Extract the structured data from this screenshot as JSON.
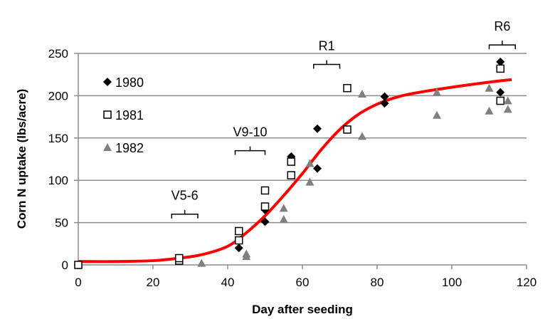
{
  "chart_data": {
    "type": "scatter",
    "title": "",
    "xlabel": "Day after seeding",
    "ylabel": "Corn N uptake (lbs/acre)",
    "xlim": [
      0,
      120
    ],
    "ylim": [
      0,
      250
    ],
    "xticks": [
      0,
      20,
      40,
      60,
      80,
      100,
      120
    ],
    "yticks": [
      0,
      50,
      100,
      150,
      200,
      250
    ],
    "grid": "horizontal",
    "legend_position": "top-left inside",
    "series": [
      {
        "name": "1980",
        "marker": "diamond",
        "color": "#000000",
        "points": [
          [
            0,
            0
          ],
          [
            43,
            20
          ],
          [
            50,
            65
          ],
          [
            50,
            51
          ],
          [
            57,
            128
          ],
          [
            64,
            161
          ],
          [
            64,
            114
          ],
          [
            82,
            199
          ],
          [
            82,
            191
          ],
          [
            113,
            240
          ],
          [
            113,
            204
          ]
        ]
      },
      {
        "name": "1981",
        "marker": "open-square",
        "color": "#000000",
        "points": [
          [
            0,
            0
          ],
          [
            27,
            5
          ],
          [
            27,
            8
          ],
          [
            43,
            40
          ],
          [
            43,
            29
          ],
          [
            50,
            88
          ],
          [
            50,
            69
          ],
          [
            57,
            106
          ],
          [
            57,
            122
          ],
          [
            72,
            209
          ],
          [
            72,
            160
          ],
          [
            113,
            232
          ],
          [
            113,
            194
          ]
        ]
      },
      {
        "name": "1982",
        "marker": "triangle",
        "color": "#808080",
        "points": [
          [
            33,
            2
          ],
          [
            45,
            13
          ],
          [
            45,
            10
          ],
          [
            55,
            67
          ],
          [
            55,
            54
          ],
          [
            62,
            120
          ],
          [
            62,
            98
          ],
          [
            76,
            202
          ],
          [
            76,
            152
          ],
          [
            96,
            204
          ],
          [
            96,
            177
          ],
          [
            110,
            209
          ],
          [
            110,
            182
          ],
          [
            115,
            194
          ],
          [
            115,
            184
          ]
        ]
      }
    ],
    "fit_curve": {
      "color": "#ff0000",
      "points": [
        [
          0,
          4
        ],
        [
          10,
          4
        ],
        [
          20,
          5
        ],
        [
          27,
          8
        ],
        [
          33,
          12
        ],
        [
          40,
          22
        ],
        [
          45,
          38
        ],
        [
          50,
          58
        ],
        [
          55,
          82
        ],
        [
          60,
          108
        ],
        [
          65,
          136
        ],
        [
          70,
          160
        ],
        [
          75,
          178
        ],
        [
          80,
          190
        ],
        [
          85,
          198
        ],
        [
          90,
          203
        ],
        [
          100,
          210
        ],
        [
          110,
          216
        ],
        [
          116,
          219
        ]
      ]
    },
    "annotations": [
      {
        "label": "V5-6",
        "x_range": [
          25,
          32
        ],
        "y": 60
      },
      {
        "label": "V9-10",
        "x_range": [
          42,
          50
        ],
        "y": 135
      },
      {
        "label": "R1",
        "x_range": [
          63,
          70
        ],
        "y": 237
      },
      {
        "label": "R6",
        "x_range": [
          110,
          117
        ],
        "y": 260
      }
    ]
  }
}
